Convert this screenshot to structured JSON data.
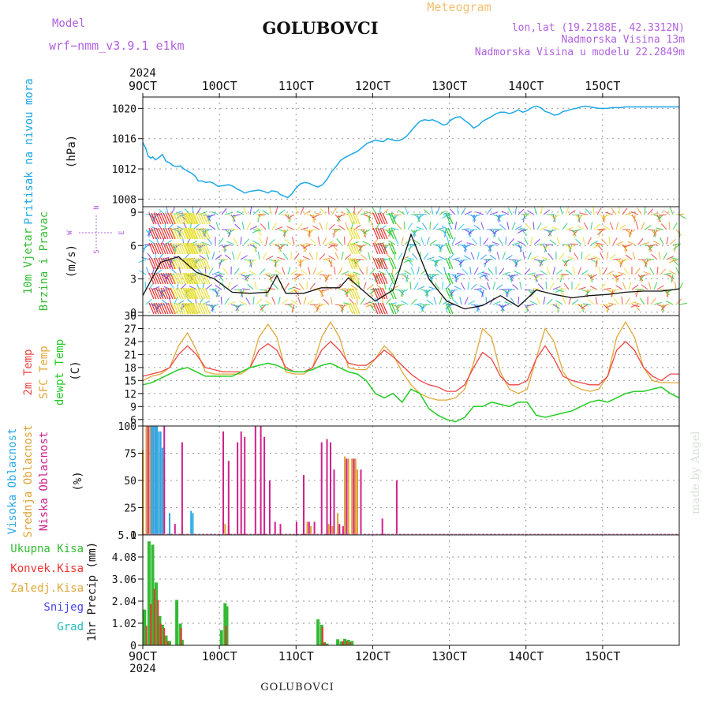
{
  "header": {
    "model_label": "Model",
    "model_name": "wrf−nmm_v3.9.1  e1km",
    "title": "GOLUBOVCI",
    "meteogram_label": "Meteogram",
    "lonlat": "lon,lat (19.2188E, 42.3312N)",
    "elevation": "Nadmorska Visina 13m",
    "model_elevation": "Nadmorska Visina u modelu 22.2849m"
  },
  "footer": {
    "station": "GOLUBOVCI",
    "watermark": "made by Angel"
  },
  "axis_top": {
    "year": "2024",
    "ticks": [
      "9OCT",
      "10OCT",
      "11OCT",
      "12OCT",
      "13OCT",
      "14OCT",
      "15OCT"
    ]
  },
  "axis_bottom": {
    "year": "2024",
    "ticks": [
      "9OCT",
      "10OCT",
      "11OCT",
      "12OCT",
      "13OCT",
      "14OCT",
      "15OCT"
    ]
  },
  "colors": {
    "pressure": "#1ea8e8",
    "temp2m": "#ee4444",
    "sfc": "#e0a838",
    "dewpt": "#22cc22",
    "high": "#2aa8e8",
    "mid": "#e0a030",
    "low": "#d0208c",
    "total": "#33bb33",
    "conv": "#ee3333",
    "snow": "#4444ee",
    "hail": "#22bbbb",
    "label_violet": "#b060e0",
    "label_orange": "#f0c070"
  },
  "chart_data": [
    {
      "type": "line",
      "panel": "pressure",
      "ylabel": [
        "Pritisak na nivou mora",
        "(hPa)"
      ],
      "yticks": [
        "1008",
        "1012",
        "1016",
        "1020"
      ],
      "ylim": [
        1007,
        1021.5
      ],
      "x_unit": "days from 9 Oct 2024 00UTC",
      "series": [
        {
          "x": [
            0,
            0.15,
            0.3,
            0.45,
            0.55,
            0.7,
            0.9,
            1.1,
            1.3,
            1.5,
            1.7,
            1.9,
            2.1,
            2.3,
            2.5,
            2.75,
            2.95,
            3.1,
            3.3,
            3.55,
            3.75,
            3.95,
            4.2,
            4.5,
            4.8,
            5.05,
            5.3,
            5.5,
            5.7,
            5.95,
            6.2,
            6.5,
            6.8,
            7,
            7.2,
            7.5,
            7.7,
            7.9,
            8.1,
            8.3,
            8.55,
            8.8,
            9.05,
            9.3,
            9.55,
            9.8,
            10.05,
            10.3,
            10.55,
            10.8,
            11.05,
            11.3,
            11.55,
            11.8,
            12,
            12.3,
            12.55,
            12.8,
            13,
            13.2,
            13.45,
            13.7,
            14,
            14.25,
            14.5,
            14.75,
            15,
            15.25,
            15.5,
            15.75,
            16,
            16.2,
            16.5,
            16.8,
            17,
            17.25,
            17.5,
            17.75,
            18,
            18.25,
            18.5,
            18.75,
            19,
            19.25,
            19.5,
            19.75,
            20,
            20.25,
            20.5,
            20.75,
            21,
            21.25,
            21.5,
            21.75,
            22,
            22.25,
            22.5,
            22.75,
            23,
            23.25,
            23.5,
            23.75,
            24,
            24.25,
            24.5,
            24.75,
            25,
            25.25,
            25.5,
            25.75,
            26,
            26.25,
            26.5,
            26.75,
            27,
            27.25,
            27.5,
            27.75,
            28,
            28.25,
            28.5,
            28.75,
            29,
            29.25,
            29.5,
            29.75,
            30
          ],
          "y": [
            1015.5,
            1014.8,
            1013.7,
            1013.4,
            1013.6,
            1013.2,
            1013.5,
            1013.9,
            1013.0,
            1012.8,
            1012.4,
            1012.3,
            1012.4,
            1012.0,
            1011.7,
            1011.4,
            1011.0,
            1010.4,
            1010.4,
            1010.2,
            1010.3,
            1010.1,
            1009.7,
            1009.8,
            1009.9,
            1009.7,
            1009.3,
            1009.1,
            1008.8,
            1009.0,
            1009.1,
            1009.2,
            1009.0,
            1008.8,
            1009.1,
            1009.0,
            1008.6,
            1008.4,
            1008.2,
            1008.6,
            1009.4,
            1010.0,
            1010.2,
            1010.1,
            1009.8,
            1009.6,
            1009.9,
            1010.6,
            1011.6,
            1012.3,
            1013.1,
            1013.5,
            1013.8,
            1014.1,
            1014.3,
            1014.9,
            1015.4,
            1015.6,
            1015.8,
            1015.7,
            1015.6,
            1016.0,
            1015.8,
            1015.7,
            1015.9,
            1016.3,
            1017.0,
            1017.7,
            1018.3,
            1018.5,
            1018.4,
            1018.5,
            1018.2,
            1017.8,
            1017.9,
            1018.5,
            1018.8,
            1018.9,
            1018.4,
            1018.0,
            1017.4,
            1017.7,
            1018.3,
            1018.6,
            1018.9,
            1019.3,
            1019.5,
            1019.5,
            1019.3,
            1019.5,
            1019.8,
            1019.5,
            1019.7,
            1020.1,
            1020.3,
            1020.1,
            1019.6,
            1019.4,
            1019.1,
            1019.2,
            1019.6,
            1019.7,
            1019.9,
            1020.0,
            1020.2,
            1020.3,
            1020.2,
            1020.1,
            1020.0,
            1020.0,
            1020.0,
            1020.1,
            1020.1,
            1020.1,
            1020.2,
            1020.2,
            1020.2,
            1020.2,
            1020.2,
            1020.2,
            1020.2,
            1020.2,
            1020.2,
            1020.2,
            1020.2,
            1020.2,
            1020.2
          ]
        }
      ]
    },
    {
      "type": "line",
      "panel": "wind",
      "ylabel": [
        "10m Vjetar",
        "Brzina i Pravac",
        "(m/s)"
      ],
      "compass": {
        "n": "N",
        "s": "S",
        "w": "W",
        "e": "E"
      },
      "yticks": [
        "0",
        "3",
        "6",
        "9"
      ],
      "ylim": [
        -0.3,
        9.5
      ],
      "series": [
        {
          "name": "speed",
          "x": [
            0,
            1,
            2,
            3,
            4,
            5,
            6,
            7,
            7.5,
            8,
            9,
            10,
            11,
            11.5,
            12,
            13,
            14,
            15,
            16,
            17,
            18,
            19,
            20,
            21,
            22,
            23,
            24,
            25,
            26,
            27,
            28,
            29,
            30
          ],
          "y": [
            1.5,
            4.5,
            5.0,
            3.6,
            3.0,
            1.8,
            1.7,
            1.8,
            3.3,
            1.7,
            1.7,
            2.2,
            2.2,
            3.1,
            2.4,
            1.0,
            2.0,
            7.0,
            3.0,
            1.0,
            0.3,
            0.6,
            1.5,
            0.5,
            2.0,
            1.6,
            1.3,
            1.5,
            1.6,
            1.8,
            1.9,
            1.9,
            2.1
          ]
        }
      ]
    },
    {
      "type": "line",
      "panel": "temperature",
      "ylabel": [
        "2m Temp",
        "SFC Temp",
        "dewpt Temp",
        "(C)"
      ],
      "yticks": [
        "6",
        "9",
        "12",
        "15",
        "18",
        "21",
        "24",
        "27",
        "30"
      ],
      "ylim": [
        4.5,
        30
      ],
      "series": [
        {
          "name": "2m Temp",
          "x": [
            0,
            0.5,
            1,
            1.5,
            2,
            2.5,
            3,
            3.5,
            4,
            4.5,
            5,
            5.5,
            6,
            6.5,
            7,
            7.5,
            8,
            8.5,
            9,
            9.5,
            10,
            10.5,
            11,
            11.5,
            12,
            12.5,
            13,
            13.5,
            14,
            14.5,
            15,
            15.5,
            16,
            16.5,
            17,
            17.5,
            18,
            18.5,
            19,
            19.5,
            20,
            20.5,
            21,
            21.5,
            22,
            22.5,
            23,
            23.5,
            24,
            24.5,
            25,
            25.5,
            26,
            26.5,
            27,
            27.5,
            28,
            28.5,
            29,
            29.5,
            30
          ],
          "y": [
            16,
            16.5,
            17,
            18,
            21,
            23,
            21,
            18,
            17.5,
            17,
            17,
            17,
            18,
            22,
            23.5,
            22,
            18,
            17,
            17,
            18,
            22,
            24,
            22,
            19,
            18.5,
            18.5,
            20,
            22,
            20.5,
            18.5,
            16.5,
            15,
            14,
            13.5,
            12.5,
            12.5,
            14,
            18,
            21.5,
            20,
            16,
            14,
            14,
            15,
            20,
            23,
            20,
            16,
            15,
            14.5,
            14,
            14,
            16,
            22,
            24,
            22,
            18,
            16,
            15,
            16.5,
            16.5
          ]
        },
        {
          "name": "SFC Temp",
          "x": [
            0,
            0.5,
            1,
            1.5,
            2,
            2.5,
            3,
            3.5,
            4,
            4.5,
            5,
            5.5,
            6,
            6.5,
            7,
            7.5,
            8,
            8.5,
            9,
            9.5,
            10,
            10.5,
            11,
            11.5,
            12,
            12.5,
            13,
            13.5,
            14,
            14.5,
            15,
            15.5,
            16,
            16.5,
            17,
            17.5,
            18,
            18.5,
            19,
            19.5,
            20,
            20.5,
            21,
            21.5,
            22,
            22.5,
            23,
            23.5,
            24,
            24.5,
            25,
            25.5,
            26,
            26.5,
            27,
            27.5,
            28,
            28.5,
            29,
            29.5,
            30
          ],
          "y": [
            15,
            16,
            16.5,
            18,
            23,
            26,
            22,
            17,
            16.5,
            16.5,
            16.5,
            16.5,
            18,
            25,
            28,
            25,
            17,
            16.5,
            16.5,
            18,
            25,
            28.5,
            25,
            18,
            17.5,
            17.5,
            20,
            23,
            21,
            17,
            14,
            12,
            11,
            10.5,
            10.5,
            11,
            13,
            19,
            27,
            25,
            17,
            13,
            12,
            13,
            20,
            27,
            24,
            17,
            14,
            13,
            12.5,
            13,
            16,
            25,
            28.5,
            25,
            18,
            15,
            14.5,
            14.5,
            14.5
          ]
        },
        {
          "name": "dewpt Temp",
          "x": [
            0,
            0.5,
            1,
            1.5,
            2,
            2.5,
            3,
            3.5,
            4,
            4.5,
            5,
            5.5,
            6,
            6.5,
            7,
            7.5,
            8,
            8.5,
            9,
            9.5,
            10,
            10.5,
            11,
            11.5,
            12,
            12.5,
            13,
            13.5,
            14,
            14.5,
            15,
            15.5,
            16,
            16.5,
            17,
            17.5,
            18,
            18.5,
            19,
            19.5,
            20,
            20.5,
            21,
            21.5,
            22,
            22.5,
            23,
            23.5,
            24,
            24.5,
            25,
            25.5,
            26,
            26.5,
            27,
            27.5,
            28,
            28.5,
            29,
            29.5,
            30
          ],
          "y": [
            14,
            14.5,
            15.5,
            16.5,
            17.5,
            18,
            17,
            16,
            16,
            16,
            16,
            17,
            18,
            18.5,
            19,
            18.5,
            17.5,
            17,
            17,
            17.5,
            18.5,
            19,
            18,
            17,
            16.5,
            15,
            12,
            11,
            12,
            10,
            13,
            12,
            8.5,
            7,
            6,
            5.5,
            6.5,
            9,
            9,
            10,
            9.5,
            9,
            10,
            10,
            7,
            6.5,
            7,
            7.5,
            8,
            9,
            10,
            10.5,
            10,
            11,
            12,
            12.5,
            12.5,
            13,
            13.5,
            12,
            11
          ]
        }
      ]
    },
    {
      "type": "bar",
      "panel": "clouds",
      "ylabel": [
        "Visoka Oblacnost",
        "Srednja Oblacnost",
        "Niska Oblacnost",
        "(%)"
      ],
      "yticks": [
        "0",
        "25",
        "50",
        "75",
        "100"
      ],
      "ylim": [
        0,
        100
      ],
      "series": [
        {
          "name": "Visoka Oblacnost",
          "x": [
            0.5,
            0.6,
            0.7,
            0.8,
            0.9,
            1.0,
            1.1,
            1.5,
            2.7,
            2.8
          ],
          "y": [
            100,
            100,
            100,
            100,
            95,
            95,
            80,
            20,
            22,
            20
          ]
        },
        {
          "name": "Srednja Oblacnost",
          "x": [
            0,
            0.2,
            0.4,
            0.6,
            0.8,
            1.0,
            1.2,
            1.5,
            2.2,
            4.6,
            4.8,
            9.2,
            9.4,
            10.4,
            10.6,
            10.9,
            11.0,
            11.3,
            11.5,
            11.7,
            11.9,
            12.0,
            12.2
          ],
          "y": [
            78,
            100,
            100,
            100,
            100,
            75,
            70,
            12,
            8,
            10,
            8,
            12,
            8,
            10,
            8,
            20,
            8,
            72,
            70,
            70,
            70,
            60,
            55
          ]
        },
        {
          "name": "Niska Oblacnost",
          "x": [
            0.3,
            0.5,
            0.7,
            1.2,
            1.8,
            2.2,
            4.5,
            4.8,
            5.3,
            5.5,
            5.7,
            6.3,
            6.6,
            6.8,
            7.1,
            7.4,
            7.7,
            8.6,
            9.0,
            9.3,
            9.6,
            10.0,
            10.3,
            10.5,
            10.7,
            11.0,
            11.2,
            11.4,
            11.8,
            12.2,
            13.4,
            14.2
          ],
          "y": [
            100,
            100,
            100,
            100,
            10,
            85,
            95,
            68,
            85,
            95,
            90,
            100,
            100,
            90,
            50,
            12,
            10,
            12,
            55,
            12,
            12,
            85,
            88,
            85,
            60,
            10,
            8,
            70,
            70,
            60,
            15,
            50
          ]
        }
      ]
    },
    {
      "type": "bar",
      "panel": "precipitation",
      "ylabel": [
        "1hr Precip (mm)"
      ],
      "legend": [
        "Ukupna Kisa",
        "Konvek.Kisa",
        "Zaledj.Kisa",
        "Snijeg",
        "Grad"
      ],
      "yticks": [
        "0",
        "1.02",
        "2.04",
        "3.06",
        "4.08",
        "5.1"
      ],
      "ylim": [
        0,
        5.1
      ],
      "series": [
        {
          "name": "Ukupna Kisa",
          "x": [
            0.1,
            0.35,
            0.55,
            0.75,
            0.95,
            1.1,
            1.3,
            1.5,
            1.9,
            2.1,
            2.2,
            4.4,
            4.6,
            4.7,
            9.8,
            10.0,
            10.15,
            10.3,
            10.9,
            11.1,
            11.3,
            11.5,
            11.7
          ],
          "y": [
            1.65,
            4.8,
            4.65,
            2.9,
            1.35,
            0.95,
            0.45,
            0.2,
            2.1,
            1.0,
            0.25,
            0.7,
            1.95,
            1.8,
            1.2,
            0.95,
            0.15,
            0.08,
            0.28,
            0.18,
            0.3,
            0.25,
            0.2
          ]
        },
        {
          "name": "Konvek.Kisa",
          "x": [
            0.2,
            0.45,
            0.65,
            0.85,
            1.0,
            1.2,
            1.4,
            2.15,
            4.65,
            10.05,
            10.2,
            11.2,
            11.4,
            11.6
          ],
          "y": [
            0.9,
            1.9,
            2.6,
            2.1,
            1.0,
            0.8,
            0.2,
            0.8,
            0.9,
            0.85,
            0.1,
            0.2,
            0.2,
            0.15
          ]
        }
      ]
    }
  ]
}
